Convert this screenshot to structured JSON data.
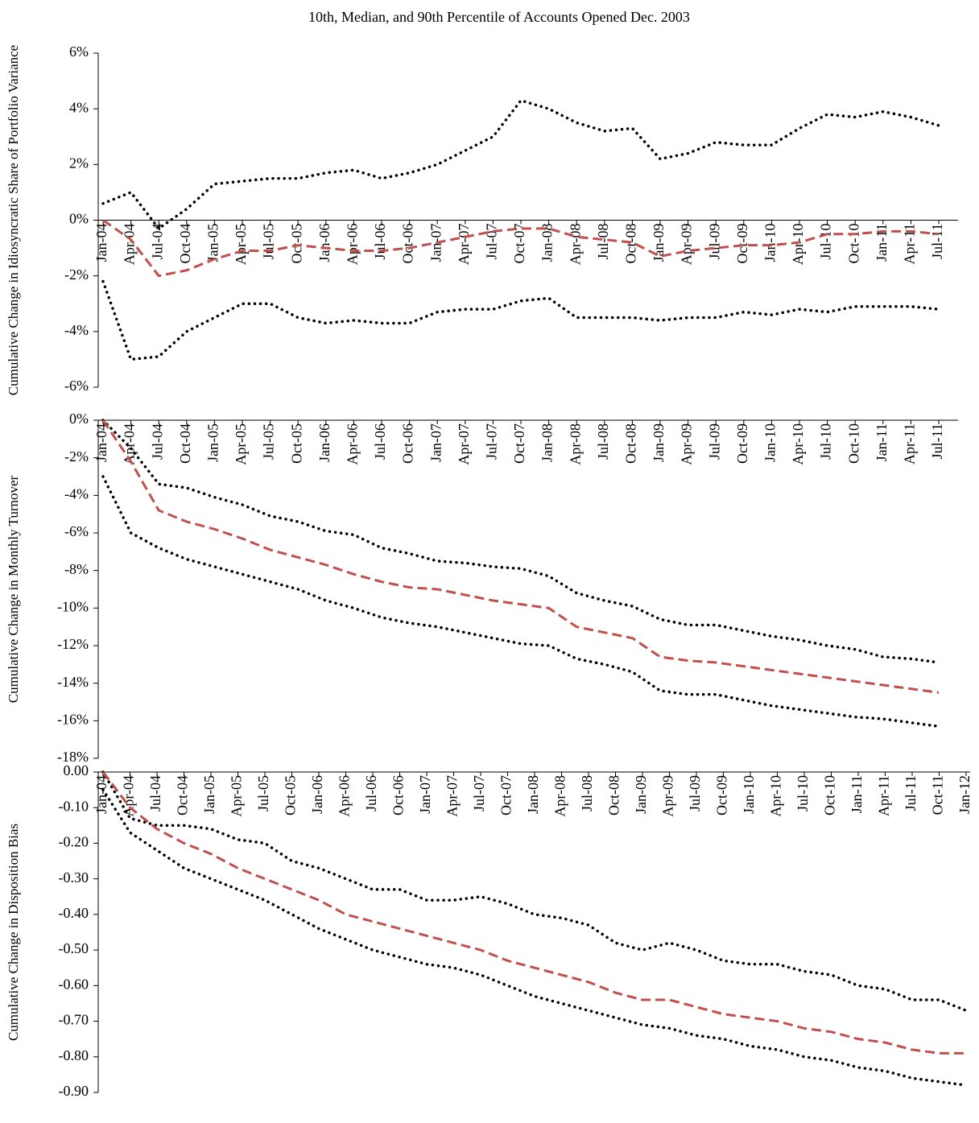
{
  "chart_data": [
    {
      "type": "line",
      "title": "10th, Median, and 90th Percentile of Accounts Opened Dec. 2003",
      "y_label": "Cumulative Change in Idiosyncratic Share of Portfolio Variance",
      "categories": [
        "Jan-04",
        "Apr-04",
        "Jul-04",
        "Oct-04",
        "Jan-05",
        "Apr-05",
        "Jul-05",
        "Oct-05",
        "Jan-06",
        "Apr-06",
        "Jul-06",
        "Oct-06",
        "Jan-07",
        "Apr-07",
        "Jul-07",
        "Oct-07",
        "Jan-08",
        "Apr-08",
        "Jul-08",
        "Oct-08",
        "Jan-09",
        "Apr-09",
        "Jul-09",
        "Oct-09",
        "Jan-10",
        "Apr-10",
        "Jul-10",
        "Oct-10",
        "Jan-11",
        "Apr-11",
        "Jul-11"
      ],
      "ylim": [
        -6,
        6
      ],
      "yticks": [
        {
          "value": -6,
          "label": "-6%"
        },
        {
          "value": -4,
          "label": "-4%"
        },
        {
          "value": -2,
          "label": "-2%"
        },
        {
          "value": 0,
          "label": "0%"
        },
        {
          "value": 2,
          "label": "2%"
        },
        {
          "value": 4,
          "label": "4%"
        },
        {
          "value": 6,
          "label": "6%"
        }
      ],
      "series": [
        {
          "color": "#000000",
          "style": "dotted",
          "values": [
            0.6,
            1.0,
            -0.3,
            0.4,
            1.3,
            1.4,
            1.5,
            1.5,
            1.7,
            1.8,
            1.5,
            1.7,
            2.0,
            2.5,
            3.0,
            4.3,
            4.0,
            3.5,
            3.2,
            3.3,
            2.2,
            2.4,
            2.8,
            2.7,
            2.7,
            3.3,
            3.8,
            3.7,
            3.9,
            3.7,
            3.4
          ]
        },
        {
          "color": "#c0504d",
          "style": "dashed",
          "values": [
            0,
            -0.7,
            -2.0,
            -1.8,
            -1.4,
            -1.1,
            -1.1,
            -0.9,
            -1.0,
            -1.1,
            -1.1,
            -1.0,
            -0.8,
            -0.6,
            -0.4,
            -0.3,
            -0.3,
            -0.6,
            -0.7,
            -0.8,
            -1.3,
            -1.1,
            -1.0,
            -0.9,
            -0.9,
            -0.8,
            -0.5,
            -0.5,
            -0.4,
            -0.4,
            -0.5
          ]
        },
        {
          "color": "#000000",
          "style": "dotted",
          "values": [
            -2.2,
            -5.0,
            -4.9,
            -4.0,
            -3.5,
            -3.0,
            -3.0,
            -3.5,
            -3.7,
            -3.6,
            -3.7,
            -3.7,
            -3.3,
            -3.2,
            -3.2,
            -2.9,
            -2.8,
            -3.5,
            -3.5,
            -3.5,
            -3.6,
            -3.5,
            -3.5,
            -3.3,
            -3.4,
            -3.2,
            -3.3,
            -3.1,
            -3.1,
            -3.1,
            -3.2
          ]
        }
      ]
    },
    {
      "type": "line",
      "y_label": "Cumulative Change in Monthly Turnover",
      "categories": [
        "Jan-04",
        "Apr-04",
        "Jul-04",
        "Oct-04",
        "Jan-05",
        "Apr-05",
        "Jul-05",
        "Oct-05",
        "Jan-06",
        "Apr-06",
        "Jul-06",
        "Oct-06",
        "Jan-07",
        "Apr-07",
        "Jul-07",
        "Oct-07",
        "Jan-08",
        "Apr-08",
        "Jul-08",
        "Oct-08",
        "Jan-09",
        "Apr-09",
        "Jul-09",
        "Oct-09",
        "Jan-10",
        "Apr-10",
        "Jul-10",
        "Oct-10",
        "Jan-11",
        "Apr-11",
        "Jul-11"
      ],
      "ylim": [
        -18,
        0
      ],
      "yticks": [
        {
          "value": -18,
          "label": "-18%"
        },
        {
          "value": -16,
          "label": "-16%"
        },
        {
          "value": -14,
          "label": "-14%"
        },
        {
          "value": -12,
          "label": "-12%"
        },
        {
          "value": -10,
          "label": "-10%"
        },
        {
          "value": -8,
          "label": "-8%"
        },
        {
          "value": -6,
          "label": "-6%"
        },
        {
          "value": -4,
          "label": "-4%"
        },
        {
          "value": -2,
          "label": "-2%"
        },
        {
          "value": 0,
          "label": "0%"
        }
      ],
      "series": [
        {
          "color": "#000000",
          "style": "dotted",
          "values": [
            0,
            -1.5,
            -3.4,
            -3.6,
            -4.1,
            -4.5,
            -5.1,
            -5.4,
            -5.9,
            -6.1,
            -6.8,
            -7.1,
            -7.5,
            -7.6,
            -7.8,
            -7.9,
            -8.3,
            -9.2,
            -9.6,
            -9.9,
            -10.6,
            -10.9,
            -10.9,
            -11.2,
            -11.5,
            -11.7,
            -12.0,
            -12.2,
            -12.6,
            -12.7,
            -12.9
          ]
        },
        {
          "color": "#c0504d",
          "style": "dashed",
          "values": [
            0,
            -2.2,
            -4.8,
            -5.4,
            -5.8,
            -6.3,
            -6.9,
            -7.3,
            -7.7,
            -8.2,
            -8.6,
            -8.9,
            -9.0,
            -9.3,
            -9.6,
            -9.8,
            -10.0,
            -11.0,
            -11.3,
            -11.6,
            -12.6,
            -12.8,
            -12.9,
            -13.1,
            -13.3,
            -13.5,
            -13.7,
            -13.9,
            -14.1,
            -14.3,
            -14.5
          ]
        },
        {
          "color": "#000000",
          "style": "dotted",
          "values": [
            -3.0,
            -6.0,
            -6.8,
            -7.4,
            -7.8,
            -8.2,
            -8.6,
            -9.0,
            -9.6,
            -10.0,
            -10.5,
            -10.8,
            -11.0,
            -11.3,
            -11.6,
            -11.9,
            -12.0,
            -12.7,
            -13.0,
            -13.4,
            -14.4,
            -14.6,
            -14.6,
            -14.9,
            -15.2,
            -15.4,
            -15.6,
            -15.8,
            -15.9,
            -16.1,
            -16.3
          ]
        }
      ]
    },
    {
      "type": "line",
      "y_label": "Cumulative Change in Disposition Bias",
      "categories": [
        "Jan-04",
        "Apr-04",
        "Jul-04",
        "Oct-04",
        "Jan-05",
        "Apr-05",
        "Jul-05",
        "Oct-05",
        "Jan-06",
        "Apr-06",
        "Jul-06",
        "Oct-06",
        "Jan-07",
        "Apr-07",
        "Jul-07",
        "Oct-07",
        "Jan-08",
        "Apr-08",
        "Jul-08",
        "Oct-08",
        "Jan-09",
        "Apr-09",
        "Jul-09",
        "Oct-09",
        "Jan-10",
        "Apr-10",
        "Jul-10",
        "Oct-10",
        "Jan-11",
        "Apr-11",
        "Jul-11",
        "Oct-11",
        "Jan-12"
      ],
      "ylim": [
        -0.9,
        0
      ],
      "yticks": [
        {
          "value": -0.9,
          "label": "-0.90"
        },
        {
          "value": -0.8,
          "label": "-0.80"
        },
        {
          "value": -0.7,
          "label": "-0.70"
        },
        {
          "value": -0.6,
          "label": "-0.60"
        },
        {
          "value": -0.5,
          "label": "-0.50"
        },
        {
          "value": -0.4,
          "label": "-0.40"
        },
        {
          "value": -0.3,
          "label": "-0.30"
        },
        {
          "value": -0.2,
          "label": "-0.20"
        },
        {
          "value": -0.1,
          "label": "-0.10"
        },
        {
          "value": 0,
          "label": "0.00"
        }
      ],
      "series": [
        {
          "color": "#000000",
          "style": "dotted",
          "values": [
            0,
            -0.13,
            -0.15,
            -0.15,
            -0.16,
            -0.19,
            -0.2,
            -0.25,
            -0.27,
            -0.3,
            -0.33,
            -0.33,
            -0.36,
            -0.36,
            -0.35,
            -0.37,
            -0.4,
            -0.41,
            -0.43,
            -0.48,
            -0.5,
            -0.48,
            -0.5,
            -0.53,
            -0.54,
            -0.54,
            -0.56,
            -0.57,
            -0.6,
            -0.61,
            -0.64,
            -0.64,
            -0.67
          ]
        },
        {
          "color": "#c0504d",
          "style": "dashed",
          "values": [
            0,
            -0.1,
            -0.16,
            -0.2,
            -0.23,
            -0.27,
            -0.3,
            -0.33,
            -0.36,
            -0.4,
            -0.42,
            -0.44,
            -0.46,
            -0.48,
            -0.5,
            -0.53,
            -0.55,
            -0.57,
            -0.59,
            -0.62,
            -0.64,
            -0.64,
            -0.66,
            -0.68,
            -0.69,
            -0.7,
            -0.72,
            -0.73,
            -0.75,
            -0.76,
            -0.78,
            -0.79,
            -0.79
          ]
        },
        {
          "color": "#000000",
          "style": "dotted",
          "values": [
            -0.05,
            -0.17,
            -0.22,
            -0.27,
            -0.3,
            -0.33,
            -0.36,
            -0.4,
            -0.44,
            -0.47,
            -0.5,
            -0.52,
            -0.54,
            -0.55,
            -0.57,
            -0.6,
            -0.63,
            -0.65,
            -0.67,
            -0.69,
            -0.71,
            -0.72,
            -0.74,
            -0.75,
            -0.77,
            -0.78,
            -0.8,
            -0.81,
            -0.83,
            -0.84,
            -0.86,
            -0.87,
            -0.88
          ]
        }
      ]
    }
  ]
}
